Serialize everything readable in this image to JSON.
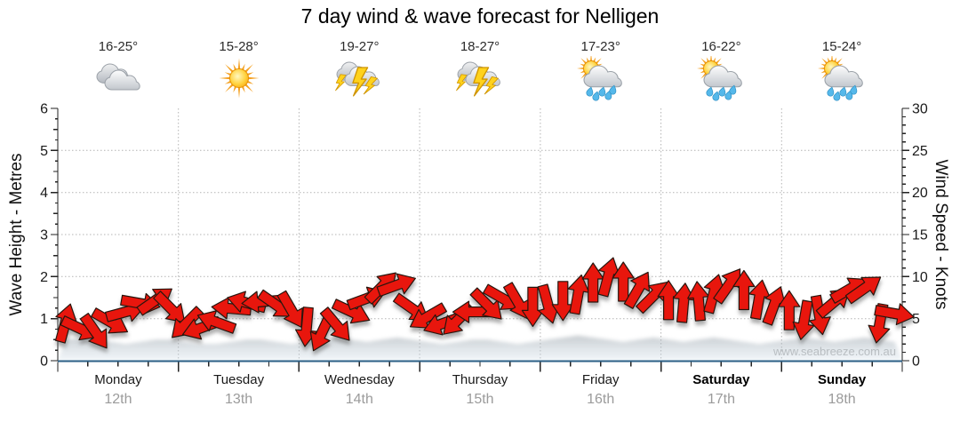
{
  "title": "7 day wind & wave forecast for Nelligen",
  "watermark": "www.seabreeze.com.au",
  "axes": {
    "left_label": "Wave Height - Metres",
    "right_label": "Wind Speed - Knots",
    "left_ticks": [
      0,
      1,
      2,
      3,
      4,
      5,
      6
    ],
    "right_ticks": [
      0,
      5,
      10,
      15,
      20,
      25,
      30
    ],
    "left_range": [
      0,
      6
    ],
    "right_range": [
      0,
      30
    ]
  },
  "days": [
    {
      "name": "Monday",
      "date": "12th",
      "temp": "16-25°",
      "icon": "cloudy-icon",
      "bold": false
    },
    {
      "name": "Tuesday",
      "date": "13th",
      "temp": "15-28°",
      "icon": "sunny-icon",
      "bold": false
    },
    {
      "name": "Wednesday",
      "date": "14th",
      "temp": "19-27°",
      "icon": "storm-icon",
      "bold": false
    },
    {
      "name": "Thursday",
      "date": "15th",
      "temp": "18-27°",
      "icon": "storm-icon",
      "bold": false
    },
    {
      "name": "Friday",
      "date": "16th",
      "temp": "17-23°",
      "icon": "sun-shower-icon",
      "bold": false
    },
    {
      "name": "Saturday",
      "date": "17th",
      "temp": "16-22°",
      "icon": "sun-shower-icon",
      "bold": true
    },
    {
      "name": "Sunday",
      "date": "18th",
      "temp": "15-24°",
      "icon": "sun-shower-icon",
      "bold": true
    }
  ],
  "chart_data": {
    "type": "wind-arrow-series",
    "x_unit": "hours from Monday 00:00",
    "x_step_hours": 3,
    "x_range_hours": [
      0,
      168
    ],
    "categories": [
      "Monday 12th",
      "Tuesday 13th",
      "Wednesday 14th",
      "Thursday 15th",
      "Friday 16th",
      "Saturday 17th",
      "Sunday 18th"
    ],
    "ylim_left_metres": [
      0,
      6
    ],
    "ylim_right_knots": [
      0,
      30
    ],
    "grid": "dotted horizontal at 1-5 m (5-25 kn), dotted vertical at midnight day boundaries",
    "wind_knots": [
      4.5,
      3.8,
      3.4,
      4.6,
      5.8,
      6.8,
      7.2,
      6.2,
      4.4,
      3.9,
      4.6,
      6.2,
      6.9,
      7.0,
      6.6,
      6.0,
      4.0,
      3.3,
      4.2,
      5.8,
      7.4,
      8.8,
      9.0,
      6.2,
      5.2,
      4.4,
      4.8,
      5.8,
      6.6,
      7.4,
      7.0,
      6.4,
      6.7,
      7.1,
      7.9,
      9.3,
      10.0,
      9.4,
      8.5,
      7.7,
      7.2,
      6.9,
      7.1,
      8.0,
      9.0,
      8.4,
      7.3,
      6.6,
      6.0,
      4.8,
      5.4,
      7.0,
      8.5,
      8.6,
      4.4,
      5.6
    ],
    "wind_dir_deg_screen": [
      -75,
      25,
      55,
      30,
      -15,
      10,
      -35,
      45,
      135,
      160,
      200,
      185,
      195,
      175,
      35,
      60,
      95,
      115,
      50,
      25,
      -20,
      -45,
      -20,
      35,
      150,
      160,
      135,
      180,
      45,
      30,
      60,
      90,
      75,
      90,
      -80,
      -90,
      -75,
      -90,
      -60,
      -45,
      -90,
      -85,
      -95,
      -75,
      -55,
      -90,
      -80,
      -70,
      -90,
      100,
      80,
      -40,
      -30,
      -35,
      100,
      10
    ],
    "wave_height_m": [
      0.5,
      0.55,
      0.5,
      0.45,
      0.4,
      0.45,
      0.5,
      0.5,
      0.45,
      0.4,
      0.4,
      0.45,
      0.5,
      0.5,
      0.45,
      0.4,
      0.45,
      0.5,
      0.55,
      0.5,
      0.45,
      0.5,
      0.55,
      0.5,
      0.45,
      0.4,
      0.45,
      0.5,
      0.5,
      0.45,
      0.4,
      0.45,
      0.5,
      0.55,
      0.6,
      0.55,
      0.5,
      0.45,
      0.5,
      0.55,
      0.5,
      0.45,
      0.5,
      0.55,
      0.5,
      0.45,
      0.4,
      0.45,
      0.5,
      0.55,
      0.5,
      0.45,
      0.5,
      0.55,
      0.5,
      0.45
    ],
    "colors": {
      "arrow": "#e8120c",
      "arrow_outline": "#27140f",
      "baseline": "#2b5f86",
      "grid": "#b4b4b4",
      "axis": "#222222",
      "date_grey": "#9b9b9b",
      "watermark_grey": "#b6b6b6"
    }
  }
}
